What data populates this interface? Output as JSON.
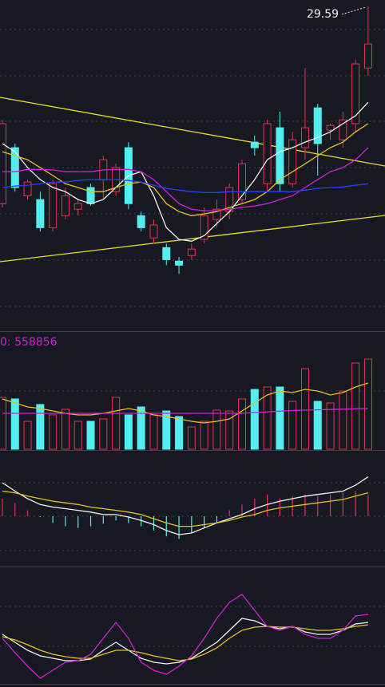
{
  "chart_data": [
    {
      "type": "candlestick",
      "annotation": "29.59",
      "ylim": [
        18.5,
        29.8
      ],
      "up_color": "#e8304e",
      "down_color": "#52eef0",
      "open": [
        22.85,
        24.76,
        23.12,
        22.99,
        22.03,
        22.44,
        22.66,
        23.4,
        23.67,
        23.26,
        24.76,
        22.44,
        21.68,
        21.35,
        20.89,
        21.08,
        21.63,
        22.31,
        22.58,
        22.99,
        24.95,
        23.53,
        25.44,
        23.53,
        24.76,
        26.12,
        25.36,
        25.03,
        25.58,
        27.48
      ],
      "high": [
        25.71,
        24.9,
        23.67,
        23.26,
        23.67,
        23.4,
        22.99,
        23.53,
        24.49,
        24.21,
        24.95,
        22.58,
        22.31,
        21.49,
        21.03,
        21.49,
        22.72,
        22.99,
        23.53,
        24.35,
        25.17,
        25.71,
        25.99,
        25.3,
        27.48,
        26.26,
        25.58,
        25.99,
        27.76,
        29.59
      ],
      "low": [
        22.72,
        23.26,
        22.99,
        21.9,
        21.9,
        22.31,
        22.44,
        22.78,
        22.99,
        23.12,
        22.66,
        21.9,
        21.49,
        20.75,
        20.45,
        20.94,
        21.49,
        22.03,
        22.31,
        22.85,
        24.49,
        23.26,
        23.26,
        23.4,
        24.35,
        23.81,
        25.03,
        24.76,
        25.3,
        27.21
      ],
      "close": [
        25.58,
        23.4,
        23.59,
        22.03,
        23.53,
        23.12,
        22.85,
        22.85,
        24.35,
        24.08,
        22.85,
        22.03,
        22.12,
        20.94,
        20.75,
        21.3,
        22.44,
        22.66,
        23.4,
        24.21,
        24.76,
        25.58,
        23.53,
        25.03,
        25.44,
        24.9,
        25.52,
        25.71,
        27.62,
        28.3
      ],
      "lines": [
        {
          "color": "#f2f2f2",
          "values": [
            24.9,
            24.62,
            24.08,
            23.67,
            23.4,
            23.26,
            22.99,
            22.85,
            22.99,
            23.4,
            23.81,
            23.94,
            23.12,
            22.03,
            21.63,
            21.57,
            21.76,
            22.17,
            22.58,
            23.12,
            23.67,
            24.35,
            24.62,
            24.76,
            24.95,
            25.11,
            25.3,
            25.58,
            25.85,
            26.31
          ]
        },
        {
          "color": "#e8c020",
          "values": [
            24.62,
            24.49,
            24.35,
            24.08,
            23.81,
            23.53,
            23.4,
            23.26,
            23.26,
            23.4,
            23.53,
            23.59,
            23.4,
            22.85,
            22.58,
            22.44,
            22.5,
            22.58,
            22.72,
            22.85,
            22.99,
            23.26,
            23.67,
            23.94,
            24.21,
            24.49,
            24.76,
            24.95,
            25.3,
            25.58
          ]
        },
        {
          "color": "#d21fd6",
          "values": [
            23.94,
            23.94,
            24.02,
            24.02,
            24.0,
            23.94,
            23.94,
            23.94,
            24.0,
            24.02,
            24.02,
            23.94,
            23.67,
            23.26,
            22.85,
            22.66,
            22.61,
            22.61,
            22.66,
            22.72,
            22.77,
            22.85,
            22.99,
            23.12,
            23.4,
            23.67,
            23.94,
            24.08,
            24.35,
            24.76
          ]
        },
        {
          "color": "#2540ff",
          "values": [
            23.4,
            23.45,
            23.48,
            23.53,
            23.59,
            23.59,
            23.64,
            23.67,
            23.67,
            23.67,
            23.64,
            23.59,
            23.48,
            23.37,
            23.31,
            23.26,
            23.23,
            23.23,
            23.26,
            23.26,
            23.26,
            23.26,
            23.26,
            23.26,
            23.31,
            23.37,
            23.4,
            23.42,
            23.48,
            23.53
          ]
        }
      ]
    },
    {
      "type": "bar",
      "label": "0: 558856",
      "label_color": "#d21fd6",
      "ylim": [
        0,
        1750000
      ],
      "values": [
        790000,
        766000,
        425000,
        681000,
        523000,
        608000,
        425000,
        425000,
        462000,
        790000,
        523000,
        644000,
        523000,
        583000,
        498000,
        340000,
        425000,
        596000,
        583000,
        766000,
        911000,
        948000,
        948000,
        729000,
        1227000,
        729000,
        705000,
        887000,
        1313000,
        1373000
      ],
      "lines": [
        {
          "color": "#e8c020",
          "values": [
            766000,
            705000,
            644000,
            620000,
            583000,
            547000,
            523000,
            523000,
            547000,
            583000,
            620000,
            583000,
            523000,
            498000,
            462000,
            425000,
            401000,
            425000,
            462000,
            583000,
            705000,
            826000,
            887000,
            863000,
            911000,
            887000,
            826000,
            863000,
            948000,
            1009000
          ]
        },
        {
          "color": "#d21fd6",
          "values": [
            547000,
            547000,
            547000,
            547000,
            547000,
            547000,
            547000,
            547000,
            547000,
            547000,
            547000,
            547000,
            547000,
            547000,
            547000,
            547000,
            547000,
            547000,
            547000,
            547000,
            559000,
            570000,
            580000,
            590000,
            595000,
            600000,
            605000,
            610000,
            615000,
            620000
          ]
        }
      ]
    },
    {
      "type": "macd",
      "ylim": [
        -0.6,
        0.6
      ],
      "values": [
        0.21,
        0.16,
        0.07,
        -0.01,
        -0.08,
        -0.12,
        -0.14,
        -0.12,
        -0.09,
        -0.05,
        -0.08,
        -0.12,
        -0.17,
        -0.24,
        -0.27,
        -0.2,
        -0.14,
        -0.08,
        0.07,
        0.14,
        0.21,
        0.26,
        0.21,
        0.24,
        0.26,
        0.24,
        0.26,
        0.28,
        0.3,
        0.26
      ],
      "lines": [
        {
          "color": "#f2f2f2",
          "values": [
            0.4,
            0.3,
            0.21,
            0.14,
            0.11,
            0.09,
            0.07,
            0.05,
            0.02,
            0.02,
            -0.01,
            -0.05,
            -0.1,
            -0.17,
            -0.22,
            -0.2,
            -0.14,
            -0.08,
            -0.03,
            0.02,
            0.09,
            0.14,
            0.18,
            0.21,
            0.24,
            0.26,
            0.28,
            0.3,
            0.37,
            0.47
          ]
        },
        {
          "color": "#e8c020",
          "values": [
            0.3,
            0.28,
            0.24,
            0.21,
            0.18,
            0.16,
            0.14,
            0.11,
            0.09,
            0.07,
            0.05,
            0.02,
            -0.03,
            -0.08,
            -0.12,
            -0.12,
            -0.1,
            -0.08,
            -0.05,
            -0.01,
            0.02,
            0.07,
            0.1,
            0.12,
            0.14,
            0.16,
            0.18,
            0.2,
            0.24,
            0.28
          ]
        }
      ]
    },
    {
      "type": "line",
      "ylim": [
        -10,
        110
      ],
      "lines": [
        {
          "color": "#f2f2f2",
          "values": [
            45.7,
            37.1,
            28.6,
            22.6,
            20.0,
            17.4,
            17.4,
            19.1,
            28.6,
            37.1,
            28.6,
            20.0,
            15.7,
            14.0,
            15.7,
            20.0,
            28.6,
            37.1,
            50.0,
            62.9,
            60.3,
            54.3,
            51.7,
            54.3,
            48.3,
            45.7,
            45.7,
            50.0,
            56.9,
            58.6
          ]
        },
        {
          "color": "#e8c020",
          "values": [
            43.1,
            39.7,
            34.6,
            28.6,
            24.3,
            21.7,
            20.0,
            20.0,
            24.3,
            28.6,
            28.6,
            26.0,
            22.6,
            20.0,
            17.4,
            19.1,
            24.3,
            31.1,
            41.4,
            50.0,
            53.4,
            54.3,
            53.4,
            53.4,
            51.7,
            50.0,
            50.0,
            51.7,
            54.3,
            56.0
          ]
        },
        {
          "color": "#d21fd6",
          "values": [
            41.4,
            26.0,
            11.4,
            -1.4,
            7.1,
            15.7,
            17.4,
            24.3,
            41.4,
            58.6,
            41.4,
            15.7,
            7.1,
            2.9,
            11.4,
            22.6,
            41.4,
            62.9,
            80.0,
            88.6,
            71.4,
            54.3,
            50.0,
            54.3,
            45.7,
            41.4,
            41.4,
            50.0,
            65.4,
            67.1
          ]
        }
      ]
    }
  ]
}
